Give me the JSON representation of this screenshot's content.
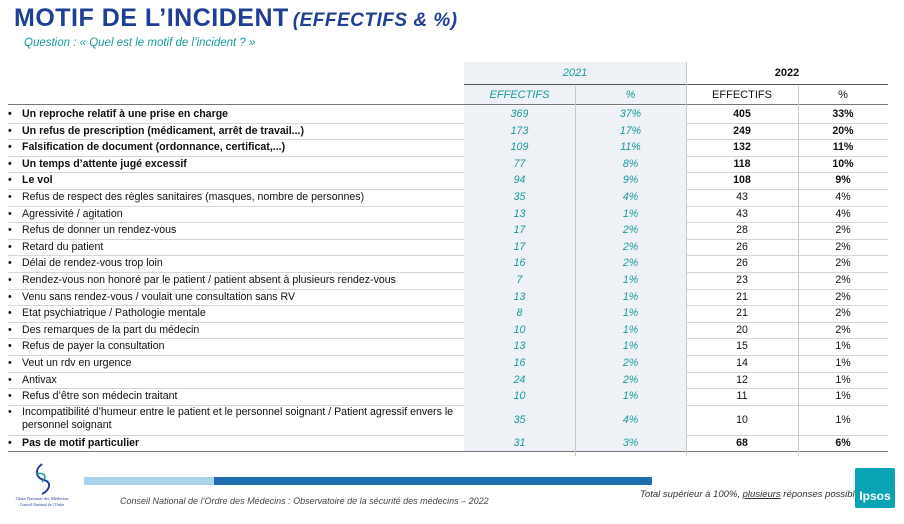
{
  "title": "MOTIF DE L’INCIDENT",
  "title_sub": "(EFFECTIFS & %)",
  "question": "Question : « Quel est le motif de l’incident ? »",
  "headers": {
    "year_2021": "2021",
    "year_2022": "2022",
    "effectifs_2021": "EFFECTIFS",
    "pct_2021": "%",
    "effectifs_2022": "EFFECTIFS",
    "pct_2022": "%"
  },
  "rows": [
    {
      "label": "Un reproche relatif à une prise en charge",
      "e2021": "369",
      "p2021": "37%",
      "e2022": "405",
      "p2022": "33%",
      "bold": true
    },
    {
      "label": "Un refus de prescription (médicament, arrêt de travail...)",
      "e2021": "173",
      "p2021": "17%",
      "e2022": "249",
      "p2022": "20%",
      "bold": true
    },
    {
      "label": "Falsification de document (ordonnance, certificat,...)",
      "e2021": "109",
      "p2021": "11%",
      "e2022": "132",
      "p2022": "11%",
      "bold": true
    },
    {
      "label": "Un temps d’attente jugé excessif",
      "e2021": "77",
      "p2021": "8%",
      "e2022": "118",
      "p2022": "10%",
      "bold": true
    },
    {
      "label": "Le vol",
      "e2021": "94",
      "p2021": "9%",
      "e2022": "108",
      "p2022": "9%",
      "bold": true
    },
    {
      "label": "Refus de respect des règles sanitaires (masques, nombre de personnes)",
      "e2021": "35",
      "p2021": "4%",
      "e2022": "43",
      "p2022": "4%",
      "bold": false
    },
    {
      "label": "Agressivité / agitation",
      "e2021": "13",
      "p2021": "1%",
      "e2022": "43",
      "p2022": "4%",
      "bold": false
    },
    {
      "label": "Refus de donner un rendez-vous",
      "e2021": "17",
      "p2021": "2%",
      "e2022": "28",
      "p2022": "2%",
      "bold": false
    },
    {
      "label": "Retard du patient",
      "e2021": "17",
      "p2021": "2%",
      "e2022": "26",
      "p2022": "2%",
      "bold": false
    },
    {
      "label": "Délai de rendez-vous trop loin",
      "e2021": "16",
      "p2021": "2%",
      "e2022": "26",
      "p2022": "2%",
      "bold": false
    },
    {
      "label": "Rendez-vous non honoré par le patient / patient absent à plusieurs rendez-vous",
      "e2021": "7",
      "p2021": "1%",
      "e2022": "23",
      "p2022": "2%",
      "bold": false
    },
    {
      "label": "Venu sans rendez-vous / voulait une consultation sans RV",
      "e2021": "13",
      "p2021": "1%",
      "e2022": "21",
      "p2022": "2%",
      "bold": false
    },
    {
      "label": "Etat psychiatrique / Pathologie mentale",
      "e2021": "8",
      "p2021": "1%",
      "e2022": "21",
      "p2022": "2%",
      "bold": false
    },
    {
      "label": "Des remarques de la part du médecin",
      "e2021": "10",
      "p2021": "1%",
      "e2022": "20",
      "p2022": "2%",
      "bold": false
    },
    {
      "label": "Refus de payer la consultation",
      "e2021": "13",
      "p2021": "1%",
      "e2022": "15",
      "p2022": "1%",
      "bold": false
    },
    {
      "label": "Veut un rdv en urgence",
      "e2021": "16",
      "p2021": "2%",
      "e2022": "14",
      "p2022": "1%",
      "bold": false
    },
    {
      "label": "Antivax",
      "e2021": "24",
      "p2021": "2%",
      "e2022": "12",
      "p2022": "1%",
      "bold": false
    },
    {
      "label": "Refus d’être son médecin traitant",
      "e2021": "10",
      "p2021": "1%",
      "e2022": "11",
      "p2022": "1%",
      "bold": false
    },
    {
      "label": "Incompatibilité d’humeur entre le patient et le personnel soignant / Patient agressif envers le",
      "label2": "personnel soignant",
      "e2021": "35",
      "p2021": "4%",
      "e2022": "10",
      "p2022": "1%",
      "bold": false
    },
    {
      "label": "Pas de motif particulier",
      "e2021": "31",
      "p2021": "3%",
      "e2022": "68",
      "p2022": "6%",
      "bold": true
    }
  ],
  "footer_source": "Conseil National de l’Ordre des Médecins : Observatoire de la sécurité des médecins – 2022",
  "footer_note_prefix": "Total supérieur à 100%, ",
  "footer_note_underlined": "plusieurs",
  "footer_note_suffix": " réponses possibles",
  "logo_left_line1": "Ordre National des Médecins",
  "logo_left_line2": "Conseil National de l’Ordre",
  "logo_right": "Ipsos",
  "colors": {
    "title": "#1f3f95",
    "accent": "#1a9a9a",
    "ipsos": "#0aa3b4",
    "bar_dark": "#1f6fb0",
    "bar_light": "#a9d3ea"
  }
}
